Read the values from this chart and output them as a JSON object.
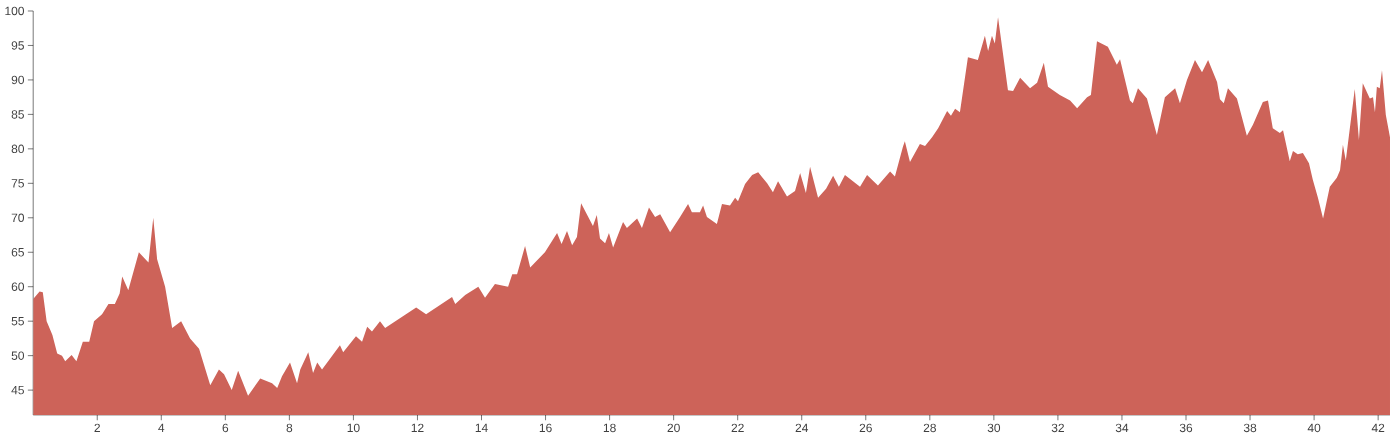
{
  "chart_data": {
    "type": "area",
    "color": "#cd6359",
    "x": [
      0,
      0.2,
      0.3,
      0.42,
      0.6,
      0.75,
      0.9,
      1.0,
      1.2,
      1.35,
      1.55,
      1.75,
      1.9,
      2.15,
      2.35,
      2.55,
      2.7,
      2.78,
      2.97,
      3.3,
      3.6,
      3.75,
      3.87,
      4.12,
      4.34,
      4.62,
      4.9,
      5.18,
      5.53,
      5.8,
      5.96,
      6.2,
      6.4,
      6.71,
      7.09,
      7.46,
      7.62,
      7.77,
      8.02,
      8.24,
      8.34,
      8.59,
      8.74,
      8.87,
      9.02,
      9.58,
      9.68,
      10.08,
      10.27,
      10.43,
      10.58,
      10.83,
      10.99,
      11.96,
      12.27,
      13.08,
      13.18,
      13.49,
      13.9,
      14.11,
      14.42,
      14.83,
      14.96,
      15.11,
      15.36,
      15.52,
      15.98,
      16.36,
      16.5,
      16.67,
      16.83,
      16.98,
      17.11,
      17.48,
      17.6,
      17.7,
      17.86,
      17.98,
      18.11,
      18.42,
      18.54,
      18.86,
      19.01,
      19.23,
      19.42,
      19.58,
      19.89,
      20.2,
      20.45,
      20.57,
      20.82,
      20.92,
      21.04,
      21.35,
      21.51,
      21.76,
      21.92,
      22.01,
      22.23,
      22.45,
      22.64,
      22.92,
      23.1,
      23.26,
      23.54,
      23.79,
      23.95,
      24.13,
      24.26,
      24.51,
      24.76,
      24.98,
      25.16,
      25.35,
      25.82,
      26.04,
      26.38,
      26.76,
      26.91,
      27.16,
      27.22,
      27.38,
      27.69,
      27.85,
      28.07,
      28.26,
      28.54,
      28.66,
      28.79,
      28.94,
      29.19,
      29.5,
      29.72,
      29.82,
      29.94,
      30.03,
      30.13,
      30.44,
      30.6,
      30.82,
      31.13,
      31.35,
      31.56,
      31.69,
      32.06,
      32.38,
      32.6,
      32.91,
      33.03,
      33.22,
      33.56,
      33.84,
      33.94,
      34.25,
      34.34,
      34.5,
      34.78,
      35.09,
      35.34,
      35.66,
      35.81,
      36.03,
      36.28,
      36.5,
      36.69,
      36.97,
      37.06,
      37.18,
      37.31,
      37.59,
      37.9,
      38.09,
      38.4,
      38.56,
      38.71,
      38.93,
      39.03,
      39.24,
      39.34,
      39.49,
      39.65,
      39.84,
      39.96,
      40.12,
      40.28,
      40.49,
      40.71,
      40.81,
      40.9,
      40.99,
      41.27,
      41.4,
      41.52,
      41.74,
      41.84,
      41.9,
      41.96,
      42.05,
      42.12,
      42.24,
      42.37
    ],
    "values": [
      58.2,
      59.3,
      59.2,
      55,
      53,
      50.3,
      50,
      49.2,
      50.1,
      49.2,
      52,
      52,
      55,
      56,
      57.5,
      57.5,
      59,
      61.5,
      59.5,
      65,
      63.5,
      70,
      64,
      60,
      54,
      55,
      52.5,
      51,
      45.7,
      48,
      47.3,
      45,
      47.8,
      44.2,
      46.7,
      46,
      45.3,
      47,
      49,
      46,
      48,
      50.5,
      47.5,
      49,
      48,
      51.5,
      50.5,
      52.8,
      52,
      54.2,
      53.5,
      55,
      54,
      57,
      56,
      58.5,
      57.5,
      58.8,
      60,
      58.4,
      60.4,
      60,
      61.8,
      61.8,
      65.9,
      62.8,
      65,
      67.8,
      66.2,
      68.1,
      66,
      67.2,
      72.1,
      68.8,
      70.4,
      67,
      66.3,
      67.8,
      65.7,
      69.4,
      68.5,
      69.9,
      68.5,
      71.5,
      70.1,
      70.5,
      67.9,
      70.1,
      72,
      70.8,
      70.8,
      71.8,
      70.1,
      69.1,
      72,
      71.8,
      72.9,
      72.4,
      74.9,
      76.2,
      76.6,
      75,
      73.7,
      75.3,
      73.1,
      73.9,
      76.5,
      73.6,
      77.4,
      72.9,
      74.2,
      76.1,
      74.5,
      76.2,
      74.5,
      76.2,
      74.7,
      76.7,
      76,
      80.3,
      81.1,
      78.1,
      80.7,
      80.4,
      81.7,
      83,
      85.5,
      84.8,
      85.8,
      85.3,
      93.3,
      92.9,
      96.4,
      94.2,
      96.4,
      95.3,
      99.1,
      88.5,
      88.4,
      90.3,
      88.8,
      89.6,
      92.5,
      89,
      87.8,
      87,
      85.9,
      87.5,
      87.8,
      95.6,
      94.8,
      92.2,
      93,
      87,
      86.6,
      88.8,
      87.3,
      82,
      87.5,
      88.8,
      86.6,
      90,
      92.9,
      91.1,
      92.9,
      89.7,
      87.2,
      86.6,
      88.8,
      87.3,
      81.9,
      83.5,
      86.8,
      87,
      83,
      82.3,
      82.7,
      78.2,
      79.7,
      79.2,
      79.4,
      77.9,
      75.5,
      72.9,
      69.9,
      74.5,
      75.8,
      76.9,
      80.6,
      78.3,
      88.7,
      81.3,
      89.5,
      87.3,
      87.5,
      85.3,
      89,
      88.8,
      91.4,
      84.9,
      81.7
    ],
    "xlim": [
      0,
      42.37
    ],
    "ylim": [
      41.4,
      100
    ],
    "xticks": [
      2,
      4,
      6,
      8,
      10,
      12,
      14,
      16,
      18,
      20,
      22,
      24,
      26,
      28,
      30,
      32,
      34,
      36,
      38,
      40,
      42
    ],
    "yticks": [
      45,
      50,
      55,
      60,
      65,
      70,
      75,
      80,
      85,
      90,
      95,
      100
    ]
  }
}
